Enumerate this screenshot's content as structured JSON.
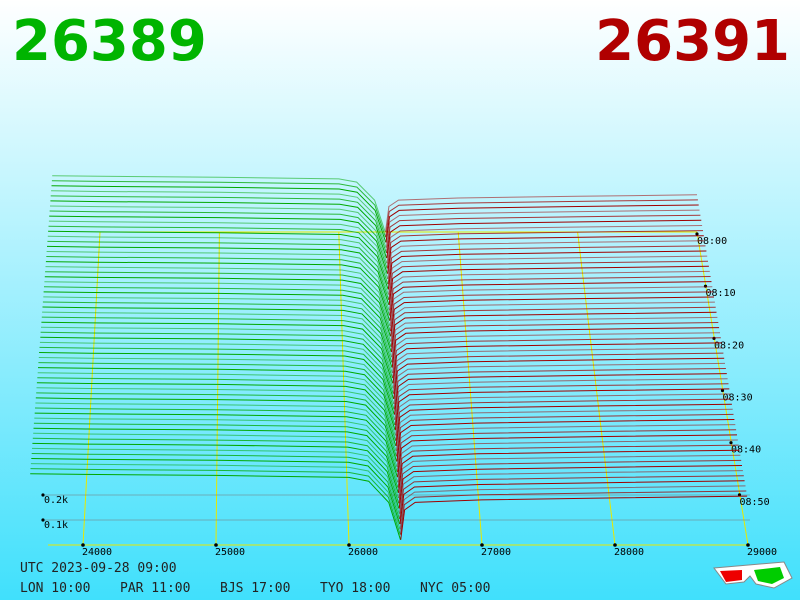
{
  "chart_data": {
    "type": "depth3d",
    "bid_price": 26389,
    "ask_price": 26391,
    "bids": {
      "color": "#00a800",
      "prices": [
        23600,
        24000,
        25000,
        26000,
        26150,
        26300,
        26389
      ],
      "depth": [
        265,
        262,
        258,
        250,
        235,
        150,
        0
      ]
    },
    "asks": {
      "color": "#a00000",
      "prices": [
        26391,
        26420,
        26500,
        27000,
        28000,
        29000
      ],
      "depth": [
        0,
        120,
        150,
        160,
        168,
        175
      ]
    },
    "xlim": [
      24000,
      29000
    ],
    "xticks": [
      24000,
      25000,
      26000,
      27000,
      28000,
      29000
    ],
    "yticks": [
      {
        "value": 100,
        "label": "0.1k"
      },
      {
        "value": 200,
        "label": "0.2k"
      }
    ],
    "times": [
      "08:00",
      "08:10",
      "08:20",
      "08:30",
      "08:40",
      "08:50"
    ],
    "utc": "UTC 2023-09-28 09:00",
    "zones": [
      "LON 10:00",
      "PAR 11:00",
      "BJS 17:00",
      "TYO 18:00",
      "NYC 05:00"
    ]
  }
}
